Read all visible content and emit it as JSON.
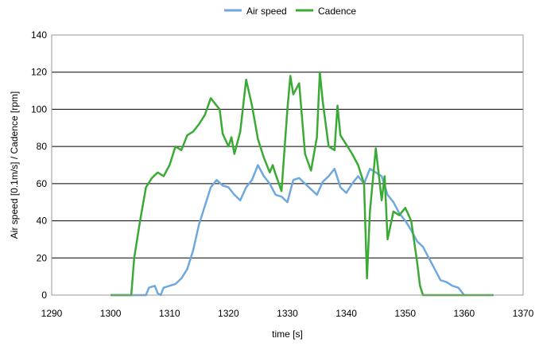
{
  "chart_data": {
    "type": "line",
    "xlabel": "time [s]",
    "ylabel": "Air speed [0.1m/s] / Cadence [rpm]",
    "xlim": [
      1290,
      1370
    ],
    "ylim": [
      0,
      140
    ],
    "xticks": [
      1290,
      1300,
      1310,
      1320,
      1330,
      1340,
      1350,
      1360,
      1370
    ],
    "yticks": [
      0,
      20,
      40,
      60,
      80,
      100,
      120,
      140
    ],
    "grid": "horizontal",
    "legend_position": "top-center",
    "series": [
      {
        "name": "Air speed",
        "color": "#6fa8dc",
        "points": [
          [
            1300,
            0
          ],
          [
            1306,
            0
          ],
          [
            1306.5,
            4
          ],
          [
            1307.5,
            5
          ],
          [
            1308,
            1
          ],
          [
            1308.5,
            0
          ],
          [
            1309,
            4
          ],
          [
            1310,
            5
          ],
          [
            1311,
            6
          ],
          [
            1312,
            9
          ],
          [
            1313,
            14
          ],
          [
            1314,
            24
          ],
          [
            1315,
            38
          ],
          [
            1316,
            48
          ],
          [
            1317,
            58
          ],
          [
            1318,
            62
          ],
          [
            1319,
            59
          ],
          [
            1320,
            58
          ],
          [
            1321,
            54
          ],
          [
            1322,
            51
          ],
          [
            1323,
            58
          ],
          [
            1324,
            62
          ],
          [
            1325,
            70
          ],
          [
            1326,
            64
          ],
          [
            1327,
            60
          ],
          [
            1328,
            54
          ],
          [
            1329,
            53
          ],
          [
            1330,
            50
          ],
          [
            1331,
            62
          ],
          [
            1332,
            63
          ],
          [
            1333,
            60
          ],
          [
            1334,
            57
          ],
          [
            1335,
            54
          ],
          [
            1336,
            61
          ],
          [
            1337,
            64
          ],
          [
            1338,
            68
          ],
          [
            1339,
            58
          ],
          [
            1340,
            55
          ],
          [
            1341,
            60
          ],
          [
            1342,
            64
          ],
          [
            1343,
            60
          ],
          [
            1344,
            68
          ],
          [
            1345,
            66
          ],
          [
            1346,
            64
          ],
          [
            1347,
            54
          ],
          [
            1348,
            50
          ],
          [
            1349,
            44
          ],
          [
            1350,
            40
          ],
          [
            1351,
            35
          ],
          [
            1352,
            29
          ],
          [
            1353,
            26
          ],
          [
            1354,
            20
          ],
          [
            1355,
            14
          ],
          [
            1356,
            8
          ],
          [
            1357,
            7
          ],
          [
            1358,
            5
          ],
          [
            1359,
            4
          ],
          [
            1360,
            0
          ]
        ]
      },
      {
        "name": "Cadence",
        "color": "#3aaa35",
        "points": [
          [
            1300,
            0
          ],
          [
            1303.5,
            0
          ],
          [
            1304,
            20
          ],
          [
            1305,
            40
          ],
          [
            1306,
            58
          ],
          [
            1307,
            63
          ],
          [
            1308,
            66
          ],
          [
            1309,
            64
          ],
          [
            1310,
            70
          ],
          [
            1311,
            80
          ],
          [
            1312,
            78
          ],
          [
            1313,
            86
          ],
          [
            1314,
            88
          ],
          [
            1315,
            92
          ],
          [
            1316,
            97
          ],
          [
            1317,
            106
          ],
          [
            1318,
            102
          ],
          [
            1318.5,
            100
          ],
          [
            1319,
            87
          ],
          [
            1320,
            80
          ],
          [
            1320.5,
            85
          ],
          [
            1321,
            76
          ],
          [
            1322,
            88
          ],
          [
            1323,
            116
          ],
          [
            1324,
            102
          ],
          [
            1325,
            84
          ],
          [
            1326,
            74
          ],
          [
            1327,
            66
          ],
          [
            1327.5,
            70
          ],
          [
            1328,
            65
          ],
          [
            1329,
            56
          ],
          [
            1330,
            100
          ],
          [
            1330.5,
            118
          ],
          [
            1331,
            108
          ],
          [
            1332,
            114
          ],
          [
            1333,
            76
          ],
          [
            1334,
            67
          ],
          [
            1335,
            85
          ],
          [
            1335.5,
            120
          ],
          [
            1336,
            104
          ],
          [
            1337,
            80
          ],
          [
            1338,
            78
          ],
          [
            1338.5,
            102
          ],
          [
            1339,
            86
          ],
          [
            1340,
            81
          ],
          [
            1341,
            76
          ],
          [
            1342,
            70
          ],
          [
            1343,
            60
          ],
          [
            1343.5,
            9
          ],
          [
            1344,
            45
          ],
          [
            1345,
            79
          ],
          [
            1346,
            51
          ],
          [
            1346.5,
            64
          ],
          [
            1347,
            30
          ],
          [
            1348,
            45
          ],
          [
            1349,
            43
          ],
          [
            1350,
            47
          ],
          [
            1351,
            40
          ],
          [
            1352,
            18
          ],
          [
            1352.5,
            5
          ],
          [
            1353,
            0
          ],
          [
            1365,
            0
          ]
        ]
      }
    ]
  }
}
